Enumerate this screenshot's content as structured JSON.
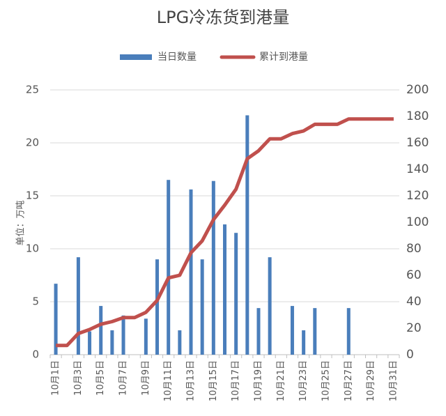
{
  "chart_data": {
    "type": "bar",
    "title": "LPG冷冻货到港量",
    "y_label": "单位：万吨",
    "categories": [
      "10月1日",
      null,
      "10月3日",
      null,
      "10月5日",
      null,
      "10月7日",
      null,
      "10月9日",
      null,
      "10月11日",
      null,
      "10月13日",
      null,
      "10月15日",
      null,
      "10月17日",
      null,
      "10月19日",
      null,
      "10月21日",
      null,
      "10月23日",
      null,
      "10月25日",
      null,
      "10月27日",
      null,
      "10月29日",
      null,
      "10月31日"
    ],
    "series": [
      {
        "name": "当日数量",
        "type": "bar",
        "color": "#4a7ebb",
        "values": [
          6.7,
          0,
          9.2,
          2.2,
          4.6,
          2.3,
          3.7,
          0,
          3.4,
          9.0,
          16.5,
          2.3,
          15.6,
          9,
          16.4,
          12.3,
          11.5,
          22.6,
          4.4,
          9.2,
          0,
          4.6,
          2.3,
          4.4,
          0,
          0,
          4.4,
          0,
          0,
          0,
          0
        ]
      },
      {
        "name": "累计到港量",
        "type": "line",
        "axis": "y2",
        "color": "#c0504d",
        "values": [
          7,
          7,
          16,
          19,
          23,
          25,
          28,
          28,
          32,
          41,
          58,
          60,
          77,
          86,
          102,
          113,
          125,
          148,
          154,
          163,
          163,
          167,
          169,
          174,
          174,
          174,
          178,
          178,
          178,
          178,
          178
        ]
      }
    ],
    "ylim": [
      0,
      25
    ],
    "yticks": [
      0,
      5,
      10,
      15,
      20,
      25
    ],
    "y2lim": [
      0,
      200
    ],
    "y2ticks": [
      0,
      20,
      40,
      60,
      80,
      100,
      120,
      140,
      160,
      180,
      200
    ],
    "grid": true,
    "legend": "top"
  }
}
